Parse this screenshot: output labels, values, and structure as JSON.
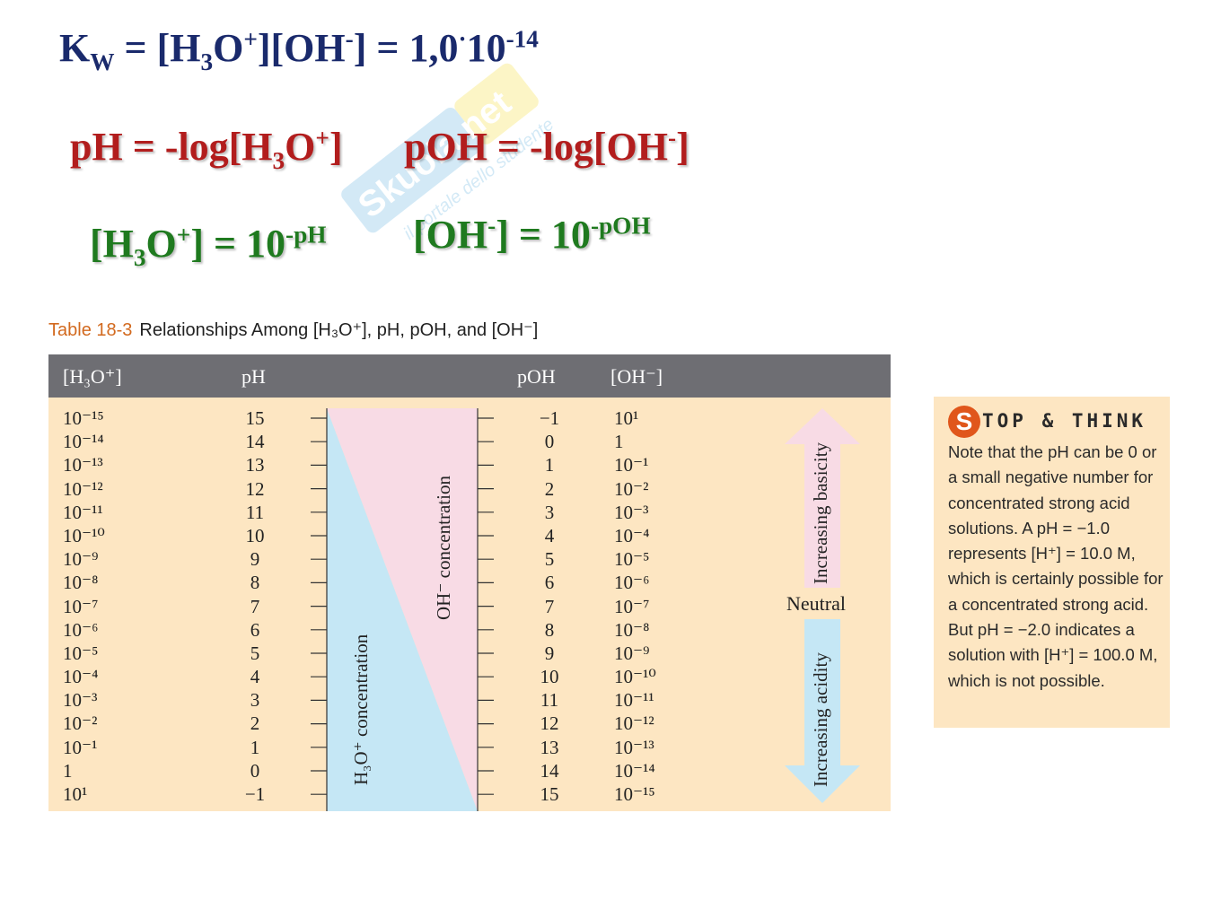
{
  "equations": {
    "kw": {
      "k": "K",
      "k_sub": "W",
      "eq1": " = [H",
      "sub3": "3",
      "o": "O",
      "plus": "+",
      "mid": "][OH",
      "minus": "-",
      "end": "] = 1,0",
      "dot": "·",
      "ten": "10",
      "exp": "-14"
    },
    "ph": {
      "a": "pH = -log[H",
      "sub": "3",
      "o": "O",
      "sup": "+",
      "end": "]"
    },
    "poh": {
      "a": "pOH = -log[OH",
      "sup": "-",
      "end": "]"
    },
    "h3o": {
      "a": "[H",
      "sub": "3",
      "o": "O",
      "sup": "+",
      "b": "] = 10",
      "exp": "-pH"
    },
    "oh": {
      "a": "[OH",
      "sup": "-",
      "b": "] = 10",
      "exp": "-pOH"
    }
  },
  "watermark": {
    "brand": "Skuola.net",
    "tagline": "il portale dello studente"
  },
  "table": {
    "caption_number": "Table 18-3",
    "caption_text": "Relationships Among [H₃O⁺], pH, pOH, and [OH⁻]",
    "headers": {
      "h3o": "[H₃O⁺]",
      "ph": "pH",
      "poh": "pOH",
      "oh": "[OH⁻]"
    },
    "h3o": [
      "10⁻¹⁵",
      "10⁻¹⁴",
      "10⁻¹³",
      "10⁻¹²",
      "10⁻¹¹",
      "10⁻¹⁰",
      "10⁻⁹",
      "10⁻⁸",
      "10⁻⁷",
      "10⁻⁶",
      "10⁻⁵",
      "10⁻⁴",
      "10⁻³",
      "10⁻²",
      "10⁻¹",
      "1",
      "10¹"
    ],
    "ph": [
      "15",
      "14",
      "13",
      "12",
      "11",
      "10",
      "9",
      "8",
      "7",
      "6",
      "5",
      "4",
      "3",
      "2",
      "1",
      "0",
      "−1"
    ],
    "poh": [
      "−1",
      "0",
      "1",
      "2",
      "3",
      "4",
      "5",
      "6",
      "7",
      "8",
      "9",
      "10",
      "11",
      "12",
      "13",
      "14",
      "15"
    ],
    "oh": [
      "10¹",
      "1",
      "10⁻¹",
      "10⁻²",
      "10⁻³",
      "10⁻⁴",
      "10⁻⁵",
      "10⁻⁶",
      "10⁻⁷",
      "10⁻⁸",
      "10⁻⁹",
      "10⁻¹⁰",
      "10⁻¹¹",
      "10⁻¹²",
      "10⁻¹³",
      "10⁻¹⁴",
      "10⁻¹⁵"
    ],
    "h3o_conc_label": "H₃O⁺ concentration",
    "oh_conc_label": "OH⁻ concentration",
    "basicity_label": "Increasing basicity",
    "acidity_label": "Increasing acidity",
    "neutral_label": "Neutral",
    "colors": {
      "header": "#6e6e73",
      "body": "#fde6c2",
      "h3o_wedge": "#c5e7f5",
      "oh_wedge": "#f8dbe5"
    }
  },
  "stop_think": {
    "s": "S",
    "title": "TOP & THINK",
    "text": "Note that the pH can be 0 or a small negative number for concentrated strong acid solutions. A pH = −1.0 represents [H⁺] = 10.0 M, which is certainly possible for a concentrated strong acid. But pH = −2.0 indicates a solution with [H⁺] = 100.0 M, which is not possible."
  }
}
